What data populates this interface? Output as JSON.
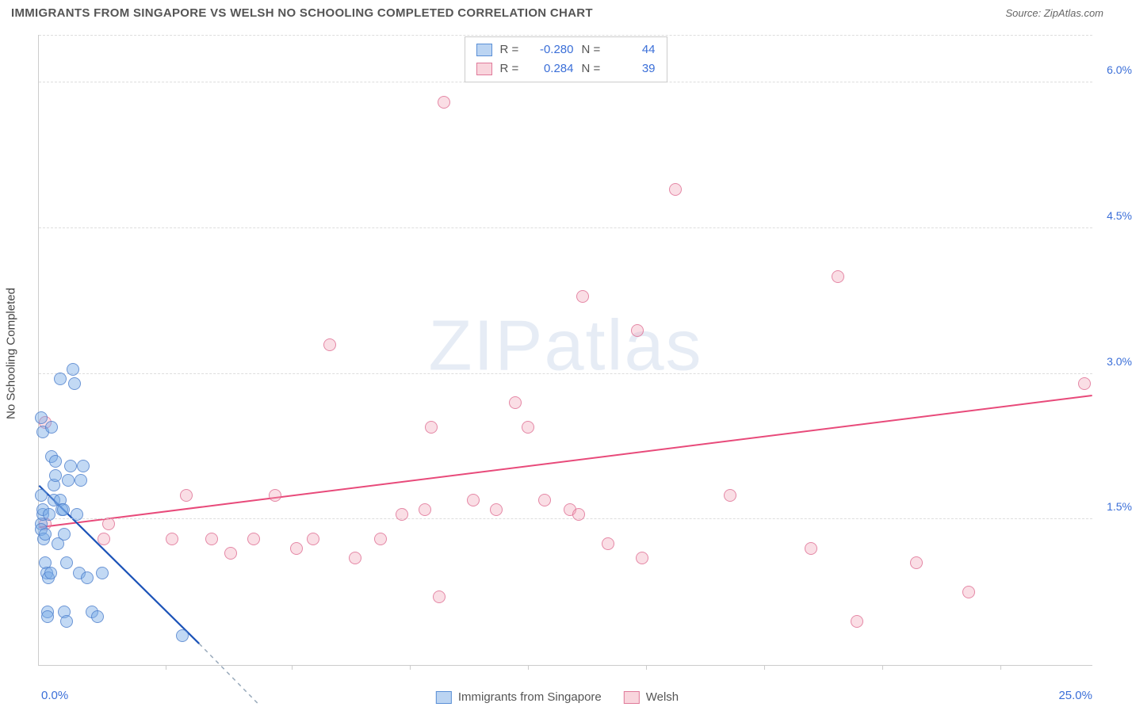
{
  "title": "IMMIGRANTS FROM SINGAPORE VS WELSH NO SCHOOLING COMPLETED CORRELATION CHART",
  "source": "Source: ZipAtlas.com",
  "y_axis_label": "No Schooling Completed",
  "watermark": {
    "part1": "ZIP",
    "part2": "atlas"
  },
  "chart": {
    "type": "scatter",
    "xlim": [
      0,
      25
    ],
    "ylim": [
      0,
      6.5
    ],
    "x_left_label": "0.0%",
    "x_right_label": "25.0%",
    "y_ticks": [
      {
        "v": 1.5,
        "label": "1.5%"
      },
      {
        "v": 3.0,
        "label": "3.0%"
      },
      {
        "v": 4.5,
        "label": "4.5%"
      },
      {
        "v": 6.0,
        "label": "6.0%"
      }
    ],
    "x_tick_positions": [
      3.0,
      6.0,
      8.8,
      11.6,
      14.4,
      17.2,
      20.0,
      22.8
    ],
    "background_color": "#ffffff",
    "grid_color": "#dddddd",
    "marker_radius": 8,
    "series": {
      "blue": {
        "name": "Immigrants from Singapore",
        "color_fill": "rgba(120,170,230,0.45)",
        "color_stroke": "#4a78c8",
        "R": "-0.280",
        "N": "44",
        "regression": {
          "solid": {
            "x1": 0.0,
            "y1": 1.85,
            "x2": 3.8,
            "y2": 0.22
          },
          "dashed_ext": {
            "x1": 3.8,
            "y1": 0.22,
            "x2": 5.2,
            "y2": -0.4
          },
          "stroke": "#1c53b8",
          "width": 2.2
        },
        "points": [
          [
            0.05,
            2.55
          ],
          [
            0.05,
            1.45
          ],
          [
            0.05,
            1.4
          ],
          [
            0.05,
            1.75
          ],
          [
            0.1,
            2.4
          ],
          [
            0.1,
            1.55
          ],
          [
            0.1,
            1.6
          ],
          [
            0.12,
            1.3
          ],
          [
            0.15,
            1.35
          ],
          [
            0.15,
            1.05
          ],
          [
            0.18,
            0.95
          ],
          [
            0.2,
            0.55
          ],
          [
            0.2,
            0.5
          ],
          [
            0.22,
            0.9
          ],
          [
            0.25,
            1.55
          ],
          [
            0.28,
            0.95
          ],
          [
            0.3,
            2.15
          ],
          [
            0.3,
            2.45
          ],
          [
            0.35,
            1.85
          ],
          [
            0.35,
            1.7
          ],
          [
            0.4,
            2.1
          ],
          [
            0.4,
            1.95
          ],
          [
            0.45,
            1.25
          ],
          [
            0.5,
            2.95
          ],
          [
            0.5,
            1.7
          ],
          [
            0.55,
            1.6
          ],
          [
            0.58,
            1.6
          ],
          [
            0.6,
            1.35
          ],
          [
            0.6,
            0.55
          ],
          [
            0.65,
            0.45
          ],
          [
            0.65,
            1.05
          ],
          [
            0.7,
            1.9
          ],
          [
            0.75,
            2.05
          ],
          [
            0.8,
            3.05
          ],
          [
            0.85,
            2.9
          ],
          [
            0.9,
            1.55
          ],
          [
            0.95,
            0.95
          ],
          [
            1.0,
            1.9
          ],
          [
            1.05,
            2.05
          ],
          [
            1.15,
            0.9
          ],
          [
            1.25,
            0.55
          ],
          [
            1.4,
            0.5
          ],
          [
            1.5,
            0.95
          ],
          [
            3.4,
            0.3
          ]
        ]
      },
      "pink": {
        "name": "Welsh",
        "color_fill": "rgba(240,160,180,0.35)",
        "color_stroke": "#dc648c",
        "R": "0.284",
        "N": "39",
        "regression": {
          "solid": {
            "x1": 0.0,
            "y1": 1.42,
            "x2": 25.0,
            "y2": 2.78
          },
          "stroke": "#e84a7a",
          "width": 2.0
        },
        "points": [
          [
            0.15,
            2.5
          ],
          [
            0.15,
            1.45
          ],
          [
            1.55,
            1.3
          ],
          [
            1.65,
            1.45
          ],
          [
            3.15,
            1.3
          ],
          [
            3.5,
            1.75
          ],
          [
            4.1,
            1.3
          ],
          [
            4.55,
            1.15
          ],
          [
            5.1,
            1.3
          ],
          [
            5.6,
            1.75
          ],
          [
            6.1,
            1.2
          ],
          [
            6.5,
            1.3
          ],
          [
            6.9,
            3.3
          ],
          [
            7.5,
            1.1
          ],
          [
            8.1,
            1.3
          ],
          [
            8.6,
            1.55
          ],
          [
            9.15,
            1.6
          ],
          [
            9.3,
            2.45
          ],
          [
            9.5,
            0.7
          ],
          [
            9.6,
            5.8
          ],
          [
            10.3,
            1.7
          ],
          [
            10.85,
            1.6
          ],
          [
            11.3,
            2.7
          ],
          [
            11.6,
            2.45
          ],
          [
            12.0,
            1.7
          ],
          [
            12.6,
            1.6
          ],
          [
            12.8,
            1.55
          ],
          [
            12.9,
            3.8
          ],
          [
            13.5,
            1.25
          ],
          [
            14.2,
            3.45
          ],
          [
            14.3,
            1.1
          ],
          [
            15.1,
            4.9
          ],
          [
            16.4,
            1.75
          ],
          [
            18.3,
            1.2
          ],
          [
            18.95,
            4.0
          ],
          [
            19.4,
            0.45
          ],
          [
            20.8,
            1.05
          ],
          [
            22.05,
            0.75
          ],
          [
            24.8,
            2.9
          ]
        ]
      }
    }
  },
  "legend_top": {
    "r_label": "R =",
    "n_label": "N ="
  },
  "legend_bottom": {
    "item1": "Immigrants from Singapore",
    "item2": "Welsh"
  }
}
